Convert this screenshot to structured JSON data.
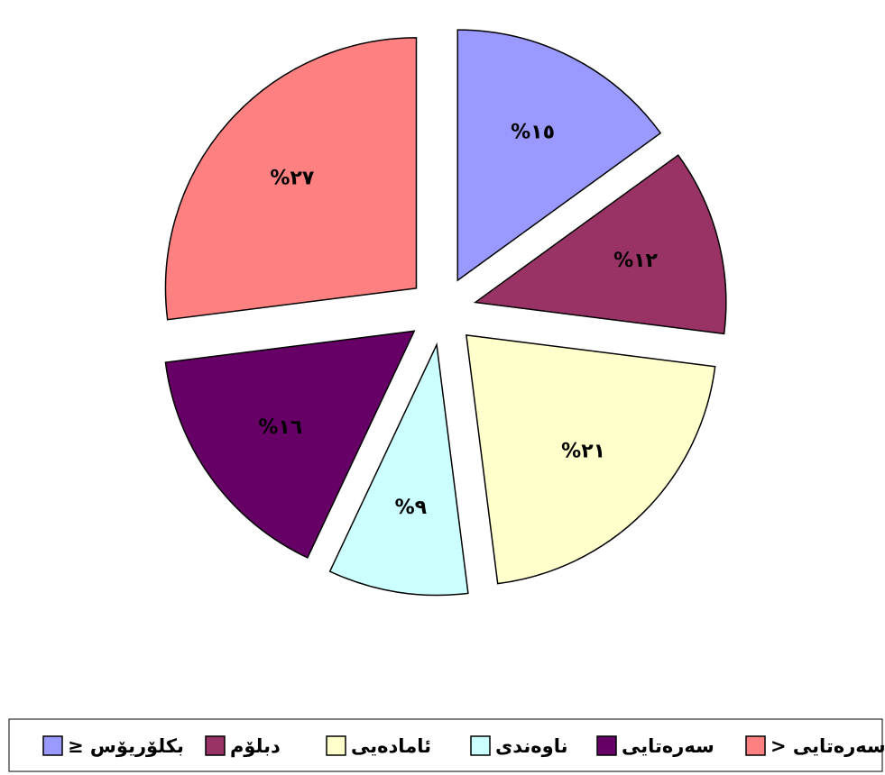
{
  "chart_data": {
    "type": "pie",
    "categories": [
      "≥ بکلۆریۆس",
      "دبلۆم",
      "ئامادەیی",
      "ناوەندی",
      "سەرەتایی",
      "> سەرەتایی"
    ],
    "values": [
      15,
      12,
      21,
      9,
      16,
      27
    ],
    "value_labels": [
      "%١٥",
      "%١٢",
      "%٢١",
      "%٩",
      "%١٦",
      "%٢٧"
    ],
    "colors": [
      "#9999ff",
      "#993366",
      "#ffffcc",
      "#ccffff",
      "#660066",
      "#ff8080"
    ],
    "legend": "bottom"
  }
}
